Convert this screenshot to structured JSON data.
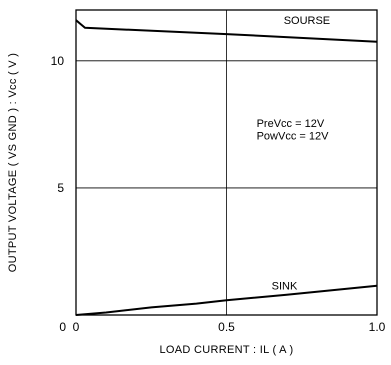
{
  "chart_data": {
    "type": "line",
    "xlabel": "LOAD CURRENT : IL ( A )",
    "ylabel": "OUTPUT VOLTAGE ( VS GND ) : Vcc ( V )",
    "xlim": [
      0,
      1.0
    ],
    "ylim": [
      0,
      12
    ],
    "x_ticks": [
      "0",
      "0.5",
      "1.0"
    ],
    "y_ticks": [
      "10",
      "5",
      "0"
    ],
    "grid": true,
    "annotations": [
      "PreVcc = 12V",
      "PowVcc = 12V"
    ],
    "series": [
      {
        "name": "SOURSE",
        "x": [
          0,
          0.015,
          0.03,
          0.5,
          1.0
        ],
        "y": [
          11.6,
          11.45,
          11.3,
          11.05,
          10.75
        ]
      },
      {
        "name": "SINK",
        "x": [
          0,
          0.1,
          0.25,
          0.4,
          0.5,
          0.7,
          1.0
        ],
        "y": [
          0.0,
          0.1,
          0.3,
          0.45,
          0.58,
          0.8,
          1.15
        ]
      }
    ]
  }
}
